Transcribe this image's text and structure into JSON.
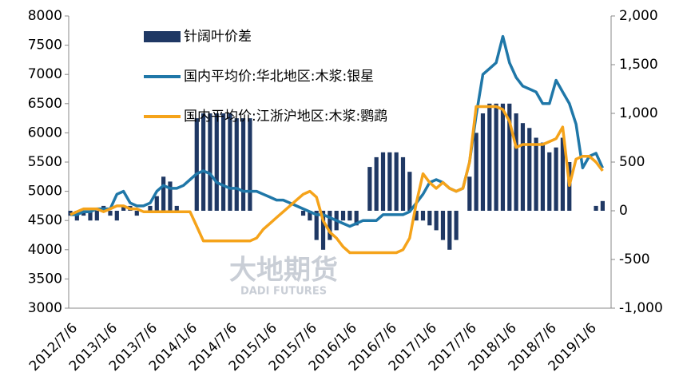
{
  "chart_data": {
    "type": "bar-line",
    "watermark": "大地期货",
    "watermark_sub": "DADI FUTURES",
    "categories": [
      "2012/7/6",
      null,
      null,
      null,
      null,
      null,
      "2013/1/6",
      null,
      null,
      null,
      null,
      null,
      "2013/7/6",
      null,
      null,
      null,
      null,
      null,
      "2014/1/6",
      null,
      null,
      null,
      null,
      null,
      "2014/7/6",
      null,
      null,
      null,
      null,
      null,
      "2015/1/6",
      null,
      null,
      null,
      null,
      null,
      "2015/7/6",
      null,
      null,
      null,
      null,
      null,
      "2016/1/6",
      null,
      null,
      null,
      null,
      null,
      "2016/7/6",
      null,
      null,
      null,
      null,
      null,
      "2017/1/6",
      null,
      null,
      null,
      null,
      null,
      "2017/7/6",
      null,
      null,
      null,
      null,
      null,
      "2018/1/6",
      null,
      null,
      null,
      null,
      null,
      "2018/7/6",
      null,
      null,
      null,
      null,
      null,
      "2019/1/6",
      null,
      null
    ],
    "series": [
      {
        "name": "针阔叶价差",
        "type": "bar",
        "axis": "y2",
        "color": "#1f3864",
        "values": [
          -50,
          -100,
          -50,
          -100,
          -100,
          50,
          -50,
          -100,
          50,
          50,
          -50,
          0,
          50,
          150,
          350,
          300,
          50,
          0,
          0,
          950,
          1000,
          1000,
          1000,
          1000,
          1000,
          950,
          950,
          950,
          0,
          0,
          0,
          0,
          0,
          0,
          0,
          -50,
          -100,
          -300,
          -400,
          -300,
          -200,
          -100,
          -100,
          -150,
          0,
          450,
          550,
          600,
          600,
          600,
          550,
          400,
          -100,
          -100,
          -150,
          -200,
          -300,
          -400,
          -300,
          0,
          350,
          800,
          1000,
          1100,
          1100,
          1100,
          1100,
          1000,
          900,
          850,
          750,
          700,
          600,
          650,
          750,
          500,
          0,
          0,
          0,
          50,
          100
        ]
      },
      {
        "name": "国内平均价:华北地区:木浆:银星",
        "type": "line",
        "axis": "y",
        "color": "#1f77a8",
        "values": [
          4600,
          4600,
          4650,
          4650,
          4700,
          4700,
          4700,
          4950,
          5000,
          4800,
          4750,
          4750,
          4800,
          5000,
          5100,
          5050,
          5050,
          5100,
          5200,
          5300,
          5350,
          5300,
          5150,
          5100,
          5050,
          5050,
          5000,
          5000,
          5000,
          4950,
          4900,
          4850,
          4850,
          4800,
          4750,
          4700,
          4650,
          4600,
          4600,
          4550,
          4500,
          4450,
          4400,
          4450,
          4500,
          4500,
          4500,
          4600,
          4600,
          4600,
          4600,
          4650,
          4800,
          4950,
          5150,
          5200,
          5150,
          5050,
          5000,
          5050,
          5500,
          6300,
          7000,
          7100,
          7200,
          7650,
          7200,
          6950,
          6800,
          6750,
          6700,
          6500,
          6500,
          6900,
          6700,
          6500,
          6150,
          5400,
          5600,
          5650,
          5400
        ]
      },
      {
        "name": "国内平均价:江浙沪地区:木浆:鹦鹉",
        "type": "line",
        "axis": "y",
        "color": "#f5a31a",
        "values": [
          4600,
          4650,
          4700,
          4700,
          4700,
          4650,
          4700,
          4750,
          4750,
          4700,
          4700,
          4650,
          4650,
          4650,
          4650,
          4650,
          4650,
          4650,
          4650,
          4400,
          4150,
          4150,
          4150,
          4150,
          4150,
          4150,
          4150,
          4150,
          4200,
          4350,
          4450,
          4550,
          4650,
          4750,
          4850,
          4950,
          5000,
          4900,
          4500,
          4300,
          4200,
          4050,
          3950,
          3950,
          3950,
          3950,
          3950,
          3950,
          3950,
          3950,
          4000,
          4200,
          4800,
          5300,
          5150,
          5050,
          5150,
          5050,
          5000,
          5050,
          5500,
          6450,
          6450,
          6450,
          6450,
          6400,
          6200,
          5750,
          5800,
          5800,
          5800,
          5800,
          5850,
          5900,
          6100,
          5100,
          5550,
          5600,
          5600,
          5500,
          5350
        ]
      }
    ],
    "ylim": [
      3000,
      8000
    ],
    "yticks": [
      3000,
      3500,
      4000,
      4500,
      5000,
      5500,
      6000,
      6500,
      7000,
      7500,
      8000
    ],
    "y2lim": [
      -1000,
      2000
    ],
    "y2ticks": [
      {
        "value": -1000,
        "label": "-1,000"
      },
      -500,
      0,
      500,
      {
        "value": 1000,
        "label": "1,000"
      },
      {
        "value": 1500,
        "label": "1,500"
      },
      {
        "value": 2000,
        "label": "2,000"
      }
    ],
    "legend": "upper left"
  }
}
